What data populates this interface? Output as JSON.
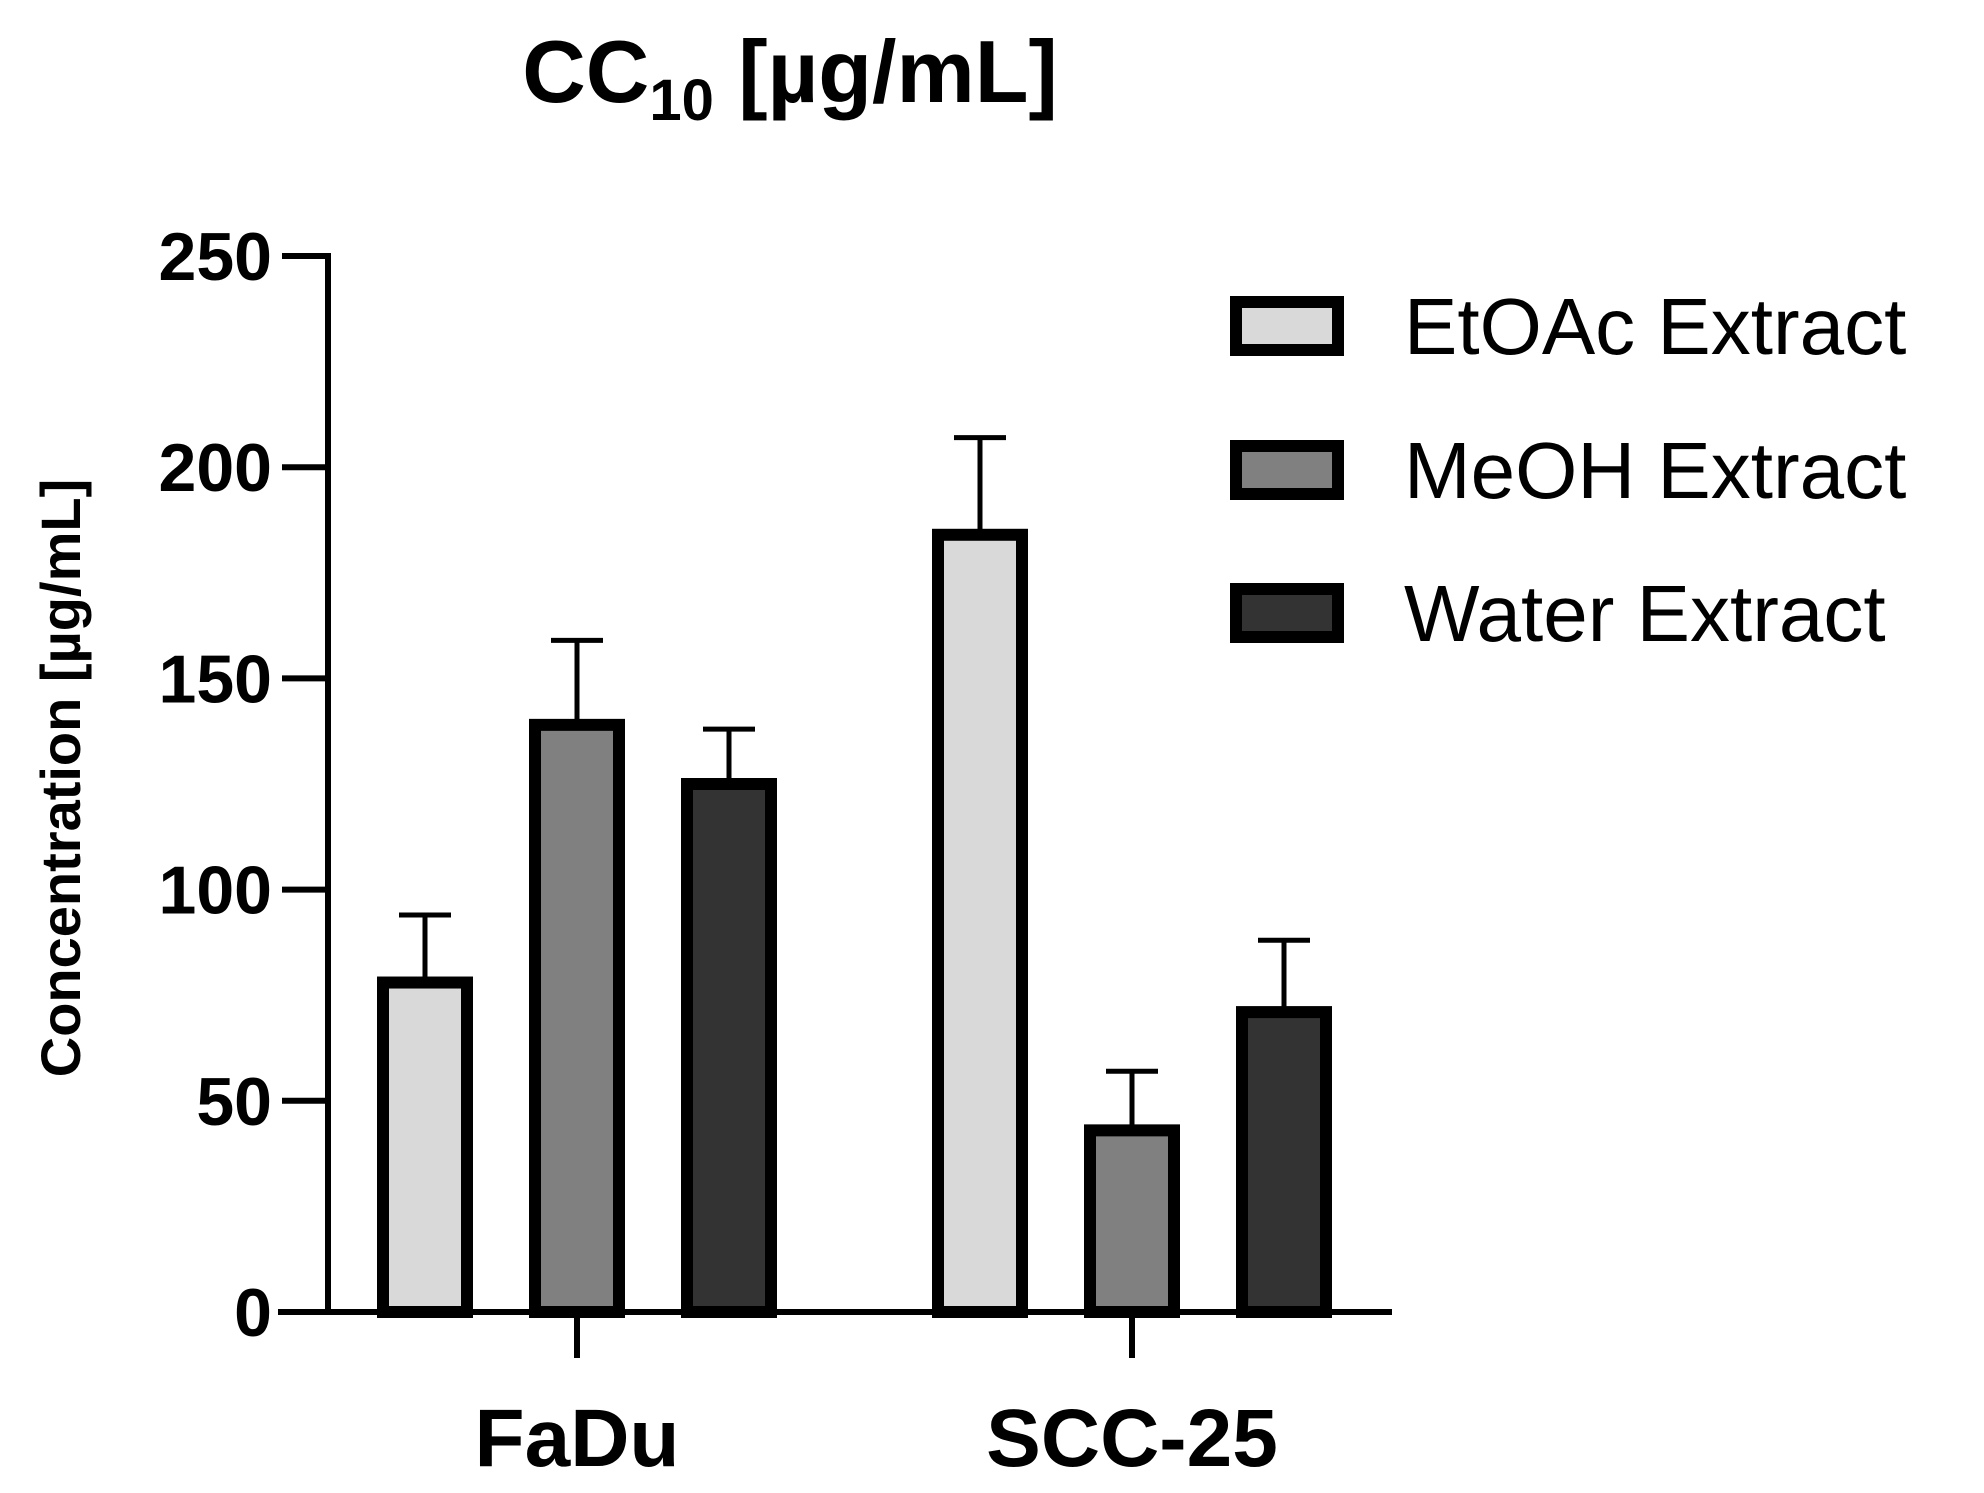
{
  "chart_data": {
    "type": "bar",
    "title": "CC",
    "title_subscript": "10",
    "title_suffix": " [µg/mL]",
    "ylabel": "Concentration [µg/mL]",
    "xlabel": "",
    "ylim": [
      0,
      250
    ],
    "yticks": [
      0,
      50,
      100,
      150,
      200,
      250
    ],
    "yticks_labels": [
      "0",
      "50",
      "100",
      "150",
      "200",
      "250"
    ],
    "categories": [
      "FaDu",
      "SCC-25"
    ],
    "legend_position": "top-right",
    "grid": false,
    "series": [
      {
        "name": "EtOAc Extract",
        "color": "#d9d9d9",
        "values": [
          78,
          184
        ],
        "errors": [
          16,
          23
        ]
      },
      {
        "name": "MeOH Extract",
        "color": "#808080",
        "values": [
          139,
          43
        ],
        "errors": [
          20,
          14
        ]
      },
      {
        "name": "Water Extract",
        "color": "#333333",
        "values": [
          125,
          71
        ],
        "errors": [
          13,
          17
        ]
      }
    ]
  }
}
